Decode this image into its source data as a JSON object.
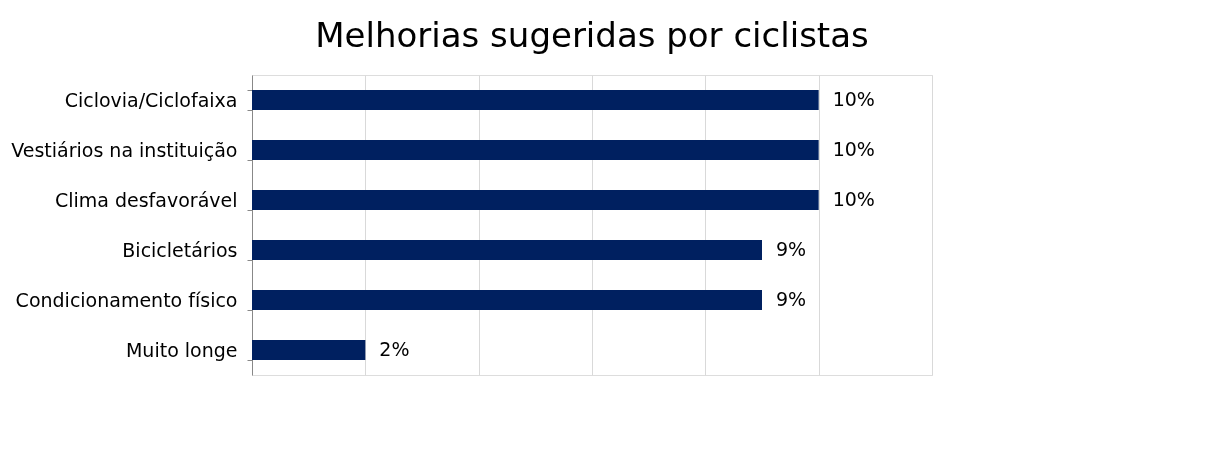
{
  "chart_data": {
    "type": "bar",
    "orientation": "horizontal",
    "title": "Melhorias sugeridas por ciclistas",
    "categories": [
      "Ciclovia/Ciclofaixa",
      "Vestiários na instituição",
      "Clima desfavorável",
      "Bicicletários",
      "Condicionamento físico",
      "Muito longe"
    ],
    "values": [
      10,
      10,
      10,
      9,
      9,
      2
    ],
    "value_labels": [
      "10%",
      "10%",
      "10%",
      "9%",
      "9%",
      "2%"
    ],
    "color": "#002060",
    "xlim": [
      0,
      12
    ],
    "xticks": [
      {
        "value": 0,
        "label": null
      },
      {
        "value": 2,
        "label": null
      },
      {
        "value": 4,
        "label": null
      },
      {
        "value": 6,
        "label": null
      },
      {
        "value": 8,
        "label": null
      },
      {
        "value": 10,
        "label": null
      },
      {
        "value": 12,
        "label": null
      }
    ],
    "grid": "x",
    "tick_labels": "y"
  }
}
